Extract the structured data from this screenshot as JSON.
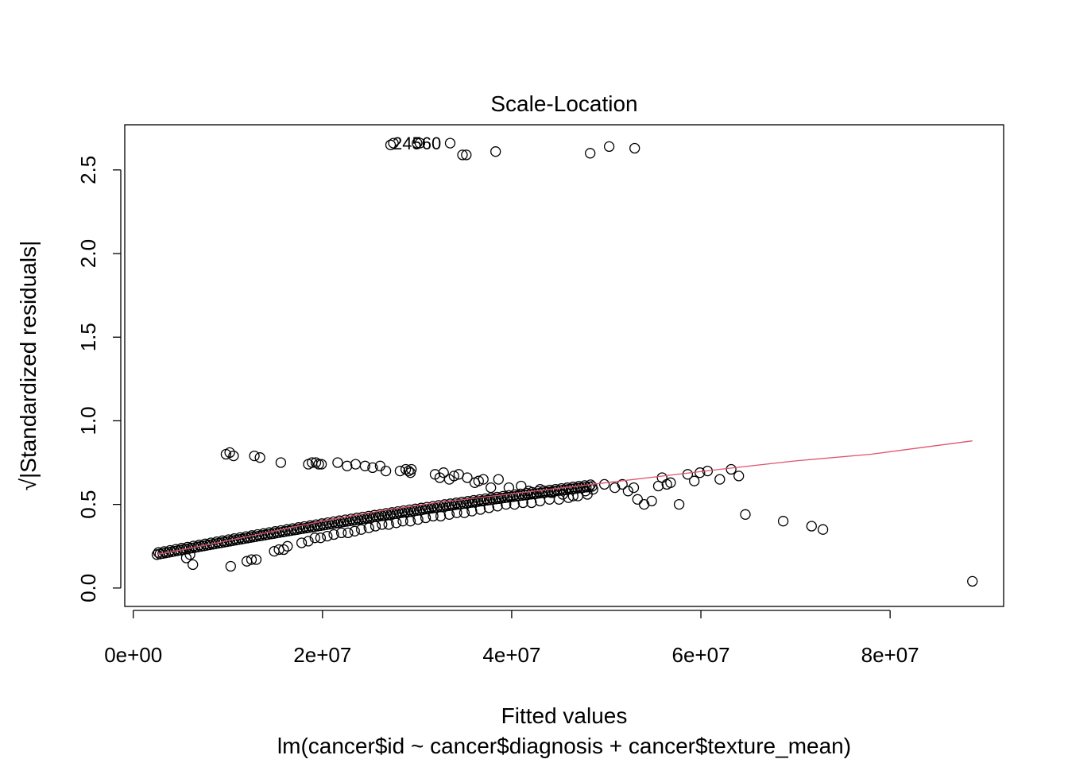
{
  "chart_data": {
    "type": "scatter",
    "title": "Scale-Location",
    "xlabel": "Fitted values",
    "ylabel": "√|Standardized residuals|",
    "subtitle": "lm(cancer$id ~ cancer$diagnosis + cancer$texture_mean)",
    "xlim": [
      -900000.0,
      92000000.0
    ],
    "ylim": [
      -0.11,
      2.77
    ],
    "x_ticks": [
      0,
      20000000,
      40000000,
      60000000,
      80000000
    ],
    "x_tick_labels": [
      "0e+00",
      "2e+07",
      "4e+07",
      "6e+07",
      "8e+07"
    ],
    "y_ticks": [
      0.0,
      0.5,
      1.0,
      1.5,
      2.0,
      2.5
    ],
    "y_tick_labels": [
      "0.0",
      "0.5",
      "1.0",
      "1.5",
      "2.0",
      "2.5"
    ],
    "grid": false,
    "point_labels": [
      "2",
      "4",
      "5",
      "6",
      "0"
    ],
    "outliers": [
      {
        "x": 27200000,
        "y": 2.65
      },
      {
        "x": 27500000,
        "y": 2.66
      },
      {
        "x": 30000000,
        "y": 2.66
      },
      {
        "x": 30300000,
        "y": 2.66
      },
      {
        "x": 33500000,
        "y": 2.66
      },
      {
        "x": 34800000,
        "y": 2.59
      },
      {
        "x": 35200000,
        "y": 2.59
      },
      {
        "x": 38300000,
        "y": 2.61
      },
      {
        "x": 48300000,
        "y": 2.6
      },
      {
        "x": 50300000,
        "y": 2.64
      },
      {
        "x": 53000000,
        "y": 2.63
      }
    ],
    "upper_band": [
      [
        9800000,
        0.8
      ],
      [
        10200000,
        0.81
      ],
      [
        10600000,
        0.79
      ],
      [
        12800000,
        0.79
      ],
      [
        13400000,
        0.78
      ],
      [
        15600000,
        0.75
      ],
      [
        18500000,
        0.74
      ],
      [
        18900000,
        0.75
      ],
      [
        19300000,
        0.75
      ],
      [
        19600000,
        0.74
      ],
      [
        19900000,
        0.74
      ],
      [
        21600000,
        0.75
      ],
      [
        22600000,
        0.73
      ],
      [
        23500000,
        0.74
      ],
      [
        24500000,
        0.73
      ],
      [
        25300000,
        0.72
      ],
      [
        26100000,
        0.73
      ],
      [
        26700000,
        0.7
      ],
      [
        28200000,
        0.7
      ],
      [
        28800000,
        0.71
      ],
      [
        29100000,
        0.7
      ],
      [
        29300000,
        0.69
      ],
      [
        29400000,
        0.71
      ],
      [
        31900000,
        0.68
      ],
      [
        32400000,
        0.66
      ],
      [
        32800000,
        0.69
      ],
      [
        33400000,
        0.65
      ],
      [
        33900000,
        0.67
      ],
      [
        34400000,
        0.68
      ],
      [
        35300000,
        0.66
      ],
      [
        36100000,
        0.63
      ],
      [
        36500000,
        0.64
      ],
      [
        37000000,
        0.65
      ],
      [
        37800000,
        0.6
      ],
      [
        38600000,
        0.65
      ],
      [
        39700000,
        0.6
      ],
      [
        41000000,
        0.61
      ],
      [
        41800000,
        0.58
      ],
      [
        43000000,
        0.59
      ],
      [
        44200000,
        0.57
      ],
      [
        45400000,
        0.56
      ],
      [
        46500000,
        0.55
      ],
      [
        47800000,
        0.58
      ],
      [
        48600000,
        0.59
      ],
      [
        49800000,
        0.62
      ],
      [
        50900000,
        0.6
      ],
      [
        51700000,
        0.62
      ],
      [
        52300000,
        0.58
      ],
      [
        52900000,
        0.6
      ],
      [
        53300000,
        0.53
      ],
      [
        54000000,
        0.5
      ],
      [
        54800000,
        0.52
      ],
      [
        55500000,
        0.61
      ],
      [
        55900000,
        0.66
      ],
      [
        56400000,
        0.62
      ],
      [
        56800000,
        0.63
      ],
      [
        57700000,
        0.5
      ],
      [
        58600000,
        0.68
      ],
      [
        59300000,
        0.64
      ],
      [
        59900000,
        0.69
      ],
      [
        60700000,
        0.7
      ],
      [
        62000000,
        0.65
      ],
      [
        63200000,
        0.71
      ],
      [
        64000000,
        0.67
      ]
    ],
    "lower_band": [
      [
        5600000,
        0.18
      ],
      [
        6000000,
        0.2
      ],
      [
        6300000,
        0.14
      ],
      [
        10300000,
        0.13
      ],
      [
        12000000,
        0.16
      ],
      [
        12500000,
        0.17
      ],
      [
        13000000,
        0.17
      ],
      [
        14900000,
        0.22
      ],
      [
        15400000,
        0.23
      ],
      [
        15900000,
        0.23
      ],
      [
        16300000,
        0.25
      ],
      [
        17800000,
        0.27
      ],
      [
        18500000,
        0.28
      ],
      [
        19200000,
        0.3
      ],
      [
        19800000,
        0.3
      ],
      [
        20500000,
        0.31
      ],
      [
        21200000,
        0.32
      ],
      [
        22000000,
        0.33
      ],
      [
        22700000,
        0.33
      ],
      [
        23400000,
        0.34
      ],
      [
        24100000,
        0.35
      ],
      [
        24900000,
        0.36
      ],
      [
        25600000,
        0.37
      ],
      [
        26300000,
        0.38
      ],
      [
        27000000,
        0.38
      ],
      [
        27800000,
        0.39
      ],
      [
        28500000,
        0.4
      ],
      [
        29300000,
        0.4
      ],
      [
        30100000,
        0.41
      ],
      [
        30900000,
        0.42
      ],
      [
        31700000,
        0.43
      ],
      [
        32500000,
        0.43
      ],
      [
        33400000,
        0.44
      ],
      [
        34200000,
        0.45
      ],
      [
        35000000,
        0.45
      ],
      [
        35800000,
        0.46
      ],
      [
        36700000,
        0.47
      ],
      [
        37600000,
        0.48
      ],
      [
        38500000,
        0.49
      ],
      [
        39400000,
        0.5
      ],
      [
        40300000,
        0.5
      ],
      [
        41200000,
        0.51
      ],
      [
        42100000,
        0.51
      ],
      [
        43000000,
        0.52
      ],
      [
        44000000,
        0.53
      ],
      [
        45000000,
        0.53
      ],
      [
        46000000,
        0.54
      ],
      [
        47000000,
        0.55
      ],
      [
        48000000,
        0.56
      ],
      [
        64700000,
        0.44
      ],
      [
        68700000,
        0.4
      ],
      [
        71700000,
        0.37
      ],
      [
        72900000,
        0.35
      ],
      [
        88700000,
        0.04
      ]
    ],
    "main_band": {
      "x_start": 2500000,
      "x_end": 48500000,
      "count": 150
    },
    "smooth_line": [
      [
        2500000,
        0.2
      ],
      [
        8000000,
        0.26
      ],
      [
        14000000,
        0.33
      ],
      [
        20000000,
        0.4
      ],
      [
        26000000,
        0.46
      ],
      [
        32000000,
        0.51
      ],
      [
        38000000,
        0.55
      ],
      [
        44000000,
        0.59
      ],
      [
        50000000,
        0.63
      ],
      [
        56000000,
        0.67
      ],
      [
        62000000,
        0.71
      ],
      [
        70000000,
        0.76
      ],
      [
        78000000,
        0.8
      ],
      [
        88700000,
        0.88
      ]
    ],
    "colors": {
      "points": "#000000",
      "smooth": "#DF536B",
      "frame": "#000000"
    }
  }
}
